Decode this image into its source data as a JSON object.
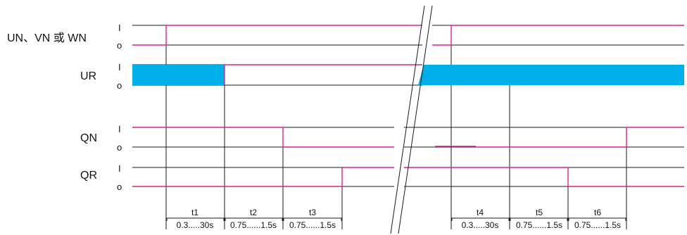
{
  "colors": {
    "pink": "#e0208c",
    "black": "#1a1a1a",
    "blue": "#00aee8"
  },
  "signals": {
    "un_vn_wn": "UN、VN 或 WN",
    "ur": "UR",
    "qn": "QN",
    "qr": "QR"
  },
  "levels": {
    "high": "I",
    "low": "o"
  },
  "intervals": [
    {
      "name": "t1",
      "range": "0.3.....30s"
    },
    {
      "name": "t2",
      "range": "0.75......1.5s"
    },
    {
      "name": "t3",
      "range": "0.75......1.5s"
    },
    {
      "name": "t4",
      "range": "0.3.....30s"
    },
    {
      "name": "t5",
      "range": "0.75......1.5s"
    },
    {
      "name": "t6",
      "range": "0.75......1.5s"
    }
  ]
}
